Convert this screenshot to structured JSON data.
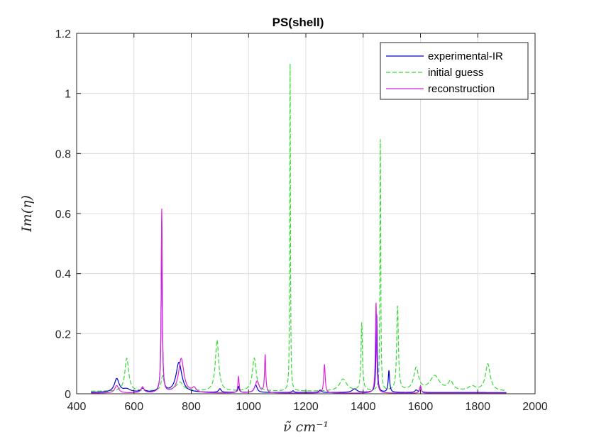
{
  "chart_data": {
    "type": "line",
    "title": "PS(shell)",
    "xlabel": "ν̃ cm⁻¹",
    "ylabel": "Im(η)",
    "xlim": [
      400,
      2000
    ],
    "ylim": [
      0,
      1.2
    ],
    "xticks": [
      "400",
      "600",
      "800",
      "1000",
      "1200",
      "1400",
      "1600",
      "1800",
      "2000"
    ],
    "yticks": [
      "0",
      "0.2",
      "0.4",
      "0.6",
      "0.8",
      "1",
      "1.2"
    ],
    "grid": true,
    "legend_position": "top-right",
    "x_range": [
      450,
      1900
    ],
    "series": [
      {
        "name": "experimental-IR",
        "color": "#0000CC",
        "style": "solid",
        "baseline": 0.004,
        "peaks": [
          [
            540,
            0.045,
            10
          ],
          [
            575,
            0.01,
            15
          ],
          [
            630,
            0.012,
            8
          ],
          [
            697,
            0.57,
            2.2
          ],
          [
            757,
            0.1,
            12
          ],
          [
            900,
            0.012,
            5
          ],
          [
            965,
            0.02,
            3
          ],
          [
            1025,
            0.025,
            6
          ],
          [
            1155,
            0.006,
            4
          ],
          [
            1250,
            0.008,
            5
          ],
          [
            1370,
            0.012,
            10
          ],
          [
            1447,
            0.26,
            2.5
          ],
          [
            1490,
            0.072,
            3
          ],
          [
            1585,
            0.008,
            5
          ],
          [
            1600,
            0.018,
            3
          ]
        ]
      },
      {
        "name": "initial guess",
        "color": "#33DD33",
        "style": "dashed",
        "baseline": 0.008,
        "peaks": [
          [
            575,
            0.11,
            8
          ],
          [
            700,
            0.05,
            6
          ],
          [
            760,
            0.03,
            15
          ],
          [
            890,
            0.17,
            7
          ],
          [
            1020,
            0.11,
            8
          ],
          [
            1145,
            1.09,
            1.4
          ],
          [
            1330,
            0.04,
            15
          ],
          [
            1395,
            0.225,
            3
          ],
          [
            1460,
            0.835,
            1.6
          ],
          [
            1520,
            0.28,
            3.5
          ],
          [
            1585,
            0.075,
            10
          ],
          [
            1650,
            0.05,
            20
          ],
          [
            1705,
            0.03,
            10
          ],
          [
            1780,
            0.015,
            15
          ],
          [
            1835,
            0.09,
            10
          ]
        ]
      },
      {
        "name": "reconstruction",
        "color": "#DD22DD",
        "style": "solid",
        "baseline": 0.002,
        "peaks": [
          [
            540,
            0.025,
            8
          ],
          [
            630,
            0.02,
            6
          ],
          [
            697,
            0.61,
            2.2
          ],
          [
            765,
            0.115,
            11
          ],
          [
            810,
            0.015,
            8
          ],
          [
            965,
            0.055,
            2.5
          ],
          [
            1030,
            0.04,
            8
          ],
          [
            1058,
            0.125,
            2.5
          ],
          [
            1265,
            0.095,
            3
          ],
          [
            1445,
            0.3,
            2.5
          ],
          [
            1600,
            0.025,
            3
          ]
        ]
      }
    ]
  }
}
